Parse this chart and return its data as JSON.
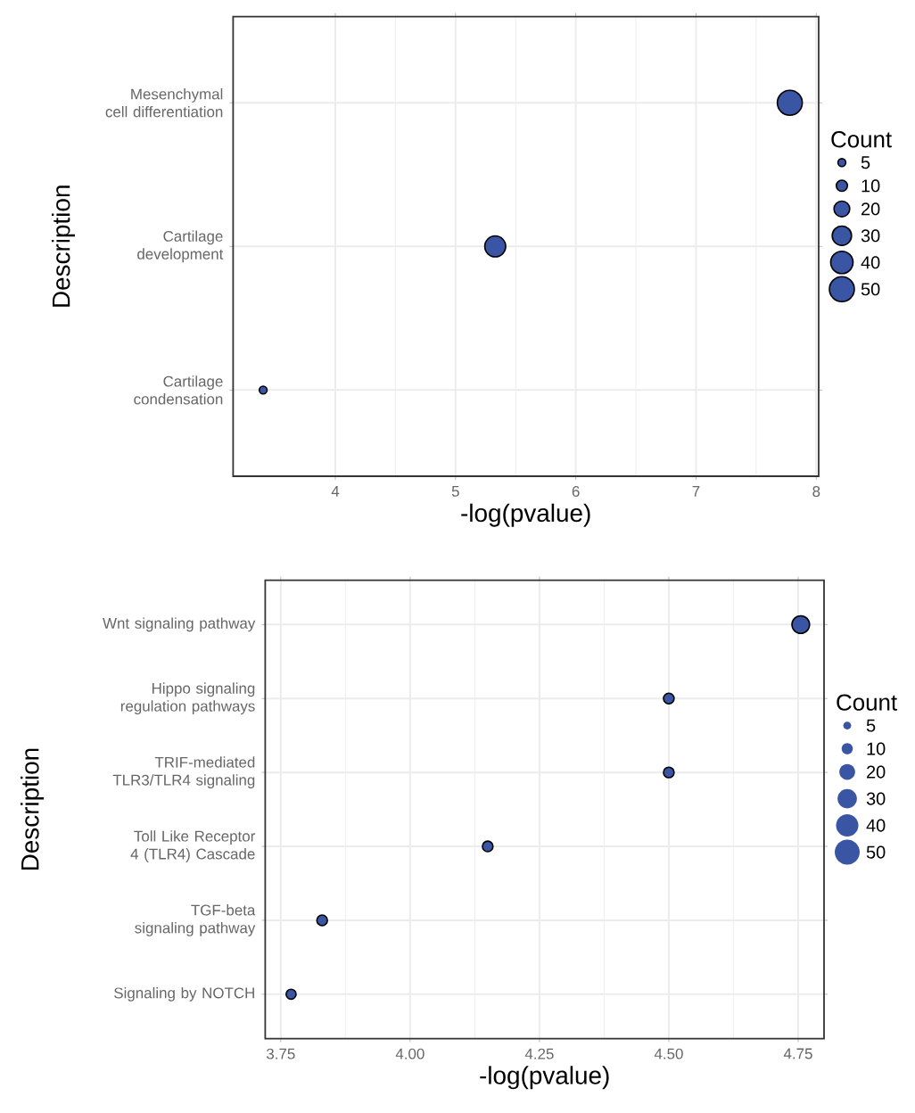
{
  "chart_data": [
    {
      "type": "bubble",
      "orientation": "horizontal",
      "xlabel": "-log(pvalue)",
      "ylabel": "Description",
      "legend_title": "Count",
      "grid": true,
      "categories": [
        "Mesenchymal cell differentiation",
        "Cartilage development",
        "Cartilage condensation"
      ],
      "values": [
        7.78,
        5.33,
        3.4
      ],
      "sizes": [
        50,
        35,
        5
      ],
      "color": "#3a55a4",
      "size_legend": [
        5,
        10,
        20,
        30,
        40,
        50
      ],
      "xlim": [
        3.15,
        8.02
      ],
      "xticks": [
        4,
        5,
        6,
        7,
        8
      ]
    },
    {
      "type": "bubble",
      "orientation": "horizontal",
      "xlabel": "-log(pvalue)",
      "ylabel": "Description",
      "legend_title": "Count",
      "grid": true,
      "categories": [
        "Wnt signaling pathway",
        "Hippo signaling regulation pathways",
        "TRIF-mediated TLR3/TLR4 signaling",
        "Toll Like Receptor 4 (TLR4) Cascade",
        "TGF-beta signaling pathway",
        "Signaling by NOTCH"
      ],
      "values": [
        4.755,
        4.5,
        4.5,
        4.15,
        3.83,
        3.77
      ],
      "sizes": [
        25,
        9,
        9,
        9,
        9,
        8
      ],
      "color": "#3a55a4",
      "size_legend": [
        5,
        10,
        20,
        30,
        40,
        50
      ],
      "xlim": [
        3.72,
        4.8
      ],
      "xticks": [
        {
          "value": 3.75,
          "label": "3.75"
        },
        {
          "value": 4.0,
          "label": "4.00"
        },
        {
          "value": 4.25,
          "label": "4.25"
        },
        {
          "value": 4.5,
          "label": "4.50"
        },
        {
          "value": 4.75,
          "label": "4.75"
        }
      ]
    }
  ]
}
